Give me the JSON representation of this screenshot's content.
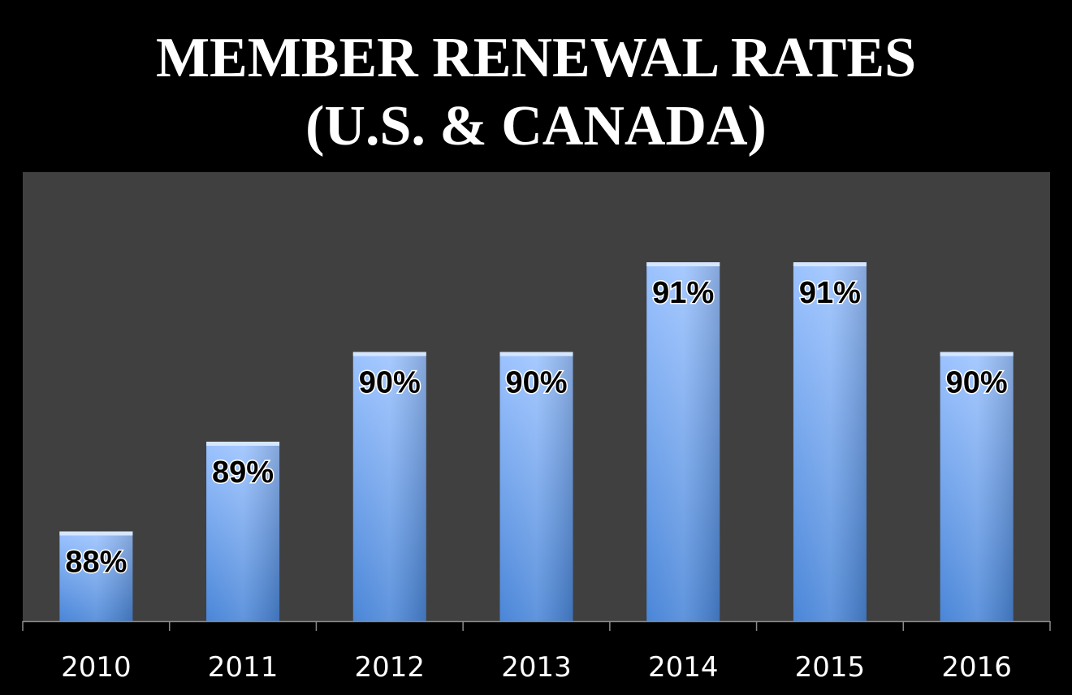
{
  "chart_data": {
    "type": "bar",
    "title": "MEMBER RENEWAL RATES",
    "subtitle": "(U.S. & CANADA)",
    "categories": [
      "2010",
      "2011",
      "2012",
      "2013",
      "2014",
      "2015",
      "2016"
    ],
    "values": [
      88,
      89,
      90,
      90,
      91,
      91,
      90
    ],
    "data_labels": [
      "88%",
      "89%",
      "90%",
      "90%",
      "91%",
      "91%",
      "90%"
    ],
    "xlabel": "",
    "ylabel": "",
    "grid": false,
    "legend": "none",
    "colors": {
      "page_background": "#000000",
      "plot_background": "#404040",
      "bar_top": "#9cc3ff",
      "bar_bottom": "#4a86d8",
      "label_text": "#000000",
      "tick_text": "#ffffff"
    }
  }
}
